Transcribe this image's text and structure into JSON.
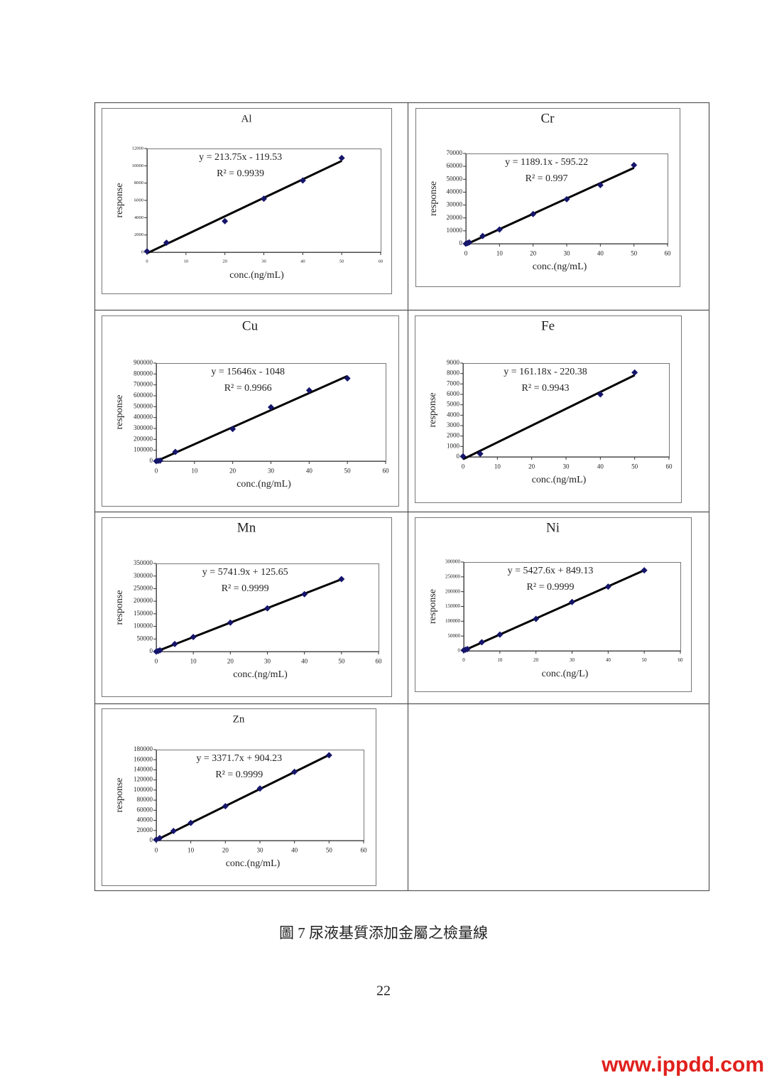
{
  "chart_data": [
    {
      "type": "scatter",
      "title": "Al",
      "xlabel": "conc.(ng/mL)",
      "ylabel": "response",
      "equation": "y = 213.75x - 119.53",
      "r_squared": "R² = 0.9939",
      "x": [
        0,
        5,
        20,
        30,
        40,
        50
      ],
      "values": [
        100,
        1100,
        3600,
        6200,
        8300,
        10900
      ],
      "trendline": {
        "slope": 213.75,
        "intercept": -119.53
      },
      "xlim": [
        0,
        60
      ],
      "xticks": [
        0,
        10,
        20,
        30,
        40,
        50,
        60
      ],
      "ylim": [
        0,
        12000
      ],
      "yticks": [
        0,
        2000,
        4000,
        6000,
        8000,
        10000,
        12000
      ],
      "color": "#15156b",
      "line_color": "#000000"
    },
    {
      "type": "scatter",
      "title": "Cr",
      "xlabel": "conc.(ng/mL)",
      "ylabel": "response",
      "equation": "y = 1189.1x - 595.22",
      "r_squared": "R² = 0.997",
      "x": [
        0,
        0.5,
        1,
        5,
        10,
        20,
        30,
        40,
        50
      ],
      "values": [
        0,
        500,
        1000,
        6000,
        11000,
        23000,
        34500,
        45500,
        61000
      ],
      "trendline": {
        "slope": 1189.1,
        "intercept": -595.22
      },
      "xlim": [
        0,
        60
      ],
      "xticks": [
        0,
        10,
        20,
        30,
        40,
        50,
        60
      ],
      "ylim": [
        0,
        70000
      ],
      "yticks": [
        0,
        10000,
        20000,
        30000,
        40000,
        50000,
        60000,
        70000
      ],
      "color": "#15156b",
      "line_color": "#000000"
    },
    {
      "type": "scatter",
      "title": "Cu",
      "xlabel": "conc.(ng/mL)",
      "ylabel": "response",
      "equation": "y = 15646x - 1048",
      "r_squared": "R² = 0.9966",
      "x": [
        0,
        0.5,
        1,
        5,
        20,
        30,
        40,
        50
      ],
      "values": [
        0,
        3000,
        5000,
        85000,
        295000,
        495000,
        650000,
        760000
      ],
      "trendline": {
        "slope": 15646,
        "intercept": -1048
      },
      "xlim": [
        0,
        60
      ],
      "xticks": [
        0,
        10,
        20,
        30,
        40,
        50,
        60
      ],
      "ylim": [
        0,
        900000
      ],
      "yticks": [
        0,
        100000,
        200000,
        300000,
        400000,
        500000,
        600000,
        700000,
        800000,
        900000
      ],
      "color": "#15156b",
      "line_color": "#000000"
    },
    {
      "type": "scatter",
      "title": "Fe",
      "xlabel": "conc.(ng/mL)",
      "ylabel": "response",
      "equation": "y = 161.18x - 220.38",
      "r_squared": "R² = 0.9943",
      "x": [
        0,
        5,
        40,
        50
      ],
      "values": [
        50,
        300,
        6000,
        8100
      ],
      "trendline": {
        "slope": 161.18,
        "intercept": -220.38
      },
      "xlim": [
        0,
        60
      ],
      "xticks": [
        0,
        10,
        20,
        30,
        40,
        50,
        60
      ],
      "ylim": [
        0,
        9000
      ],
      "yticks": [
        0,
        1000,
        2000,
        3000,
        4000,
        5000,
        6000,
        7000,
        8000,
        9000
      ],
      "color": "#15156b",
      "line_color": "#000000"
    },
    {
      "type": "scatter",
      "title": "Mn",
      "xlabel": "conc.(ng/mL)",
      "ylabel": "response",
      "equation": "y = 5741.9x + 125.65",
      "r_squared": "R² = 0.9999",
      "x": [
        0,
        0.5,
        1,
        5,
        10,
        20,
        30,
        40,
        50
      ],
      "values": [
        0,
        2000,
        5000,
        30000,
        58000,
        115000,
        172000,
        228000,
        288000
      ],
      "trendline": {
        "slope": 5741.9,
        "intercept": 125.65
      },
      "xlim": [
        0,
        60
      ],
      "xticks": [
        0,
        10,
        20,
        30,
        40,
        50,
        60
      ],
      "ylim": [
        0,
        350000
      ],
      "yticks": [
        0,
        50000,
        100000,
        150000,
        200000,
        250000,
        300000,
        350000
      ],
      "color": "#15156b",
      "line_color": "#000000"
    },
    {
      "type": "scatter",
      "title": "Ni",
      "xlabel": "conc.(ng/L)",
      "ylabel": "response",
      "equation": "y = 5427.6x + 849.13",
      "r_squared": "R² = 0.9999",
      "x": [
        0,
        0.5,
        1,
        5,
        10,
        20,
        30,
        40,
        50
      ],
      "values": [
        2000,
        4000,
        6000,
        29000,
        55000,
        108000,
        165000,
        217000,
        272000
      ],
      "trendline": {
        "slope": 5427.6,
        "intercept": 849.13
      },
      "xlim": [
        0,
        60
      ],
      "xticks": [
        0,
        10,
        20,
        30,
        40,
        50,
        60
      ],
      "ylim": [
        0,
        300000
      ],
      "yticks": [
        0,
        50000,
        100000,
        150000,
        200000,
        250000,
        300000
      ],
      "color": "#15156b",
      "line_color": "#000000"
    },
    {
      "type": "scatter",
      "title": "Zn",
      "xlabel": "conc.(ng/mL)",
      "ylabel": "response",
      "equation": "y = 3371.7x + 904.23",
      "r_squared": "R² = 0.9999",
      "x": [
        0,
        1,
        5,
        10,
        20,
        30,
        40,
        50
      ],
      "values": [
        2000,
        5000,
        19000,
        35000,
        68000,
        103000,
        136000,
        169000
      ],
      "trendline": {
        "slope": 3371.7,
        "intercept": 904.23
      },
      "xlim": [
        0,
        60
      ],
      "xticks": [
        0,
        10,
        20,
        30,
        40,
        50,
        60
      ],
      "ylim": [
        0,
        180000
      ],
      "yticks": [
        0,
        20000,
        40000,
        60000,
        80000,
        100000,
        120000,
        140000,
        160000,
        180000
      ],
      "color": "#15156b",
      "line_color": "#000000"
    }
  ],
  "caption": "圖 7 尿液基質添加金屬之檢量線",
  "page_number": "22",
  "watermark": "www.ippdd.com"
}
